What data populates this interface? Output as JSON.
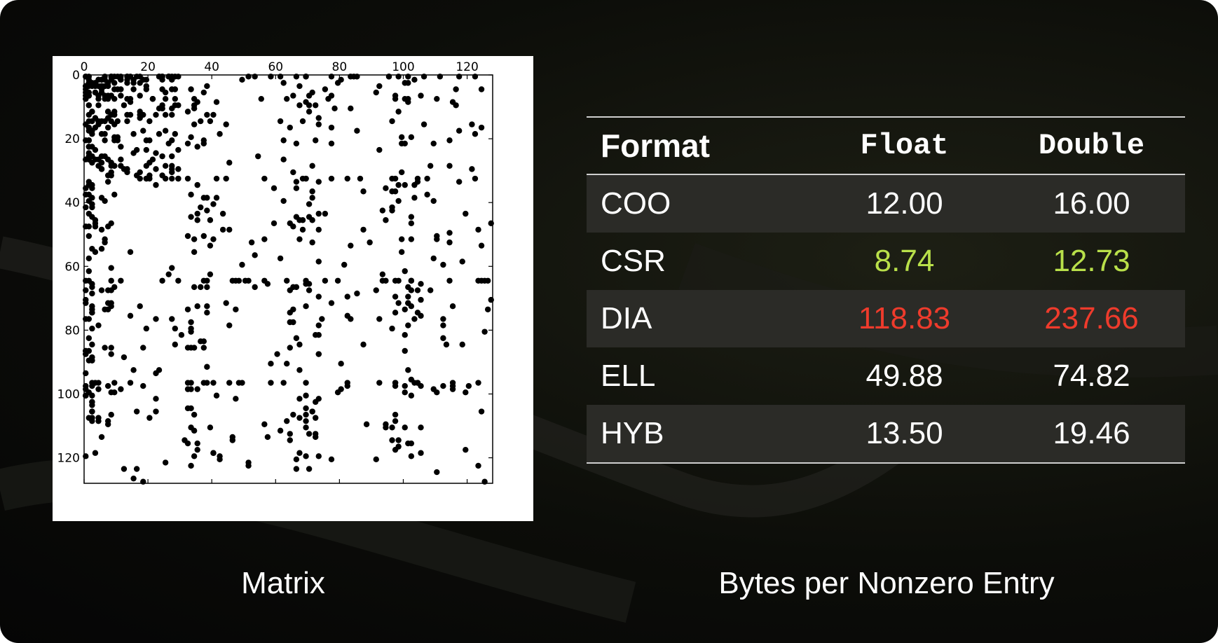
{
  "matrix": {
    "caption": "Matrix",
    "x_ticks": [
      "0",
      "20",
      "40",
      "60",
      "80",
      "100",
      "120"
    ],
    "y_ticks": [
      "0",
      "20",
      "40",
      "60",
      "80",
      "100",
      "120"
    ],
    "block_rows": [
      0,
      32,
      64,
      96
    ],
    "dot_color": "#000000"
  },
  "table": {
    "caption": "Bytes per Nonzero Entry",
    "headers": {
      "format": "Format",
      "float": "Float",
      "double": "Double"
    },
    "rows": [
      {
        "format": "COO",
        "float": "12.00",
        "double": "16.00",
        "color": "#ffffff"
      },
      {
        "format": "CSR",
        "float": "8.74",
        "double": "12.73",
        "color": "#b9e04a"
      },
      {
        "format": "DIA",
        "float": "118.83",
        "double": "237.66",
        "color": "#ee3b2c"
      },
      {
        "format": "ELL",
        "float": "49.88",
        "double": "74.82",
        "color": "#ffffff"
      },
      {
        "format": "HYB",
        "float": "13.50",
        "double": "19.46",
        "color": "#ffffff"
      }
    ]
  },
  "colors": {
    "background": "#0a0b08",
    "row_shade": "#2b2b27",
    "rule": "#cfcfcf",
    "best": "#b9e04a",
    "worst": "#ee3b2c"
  }
}
